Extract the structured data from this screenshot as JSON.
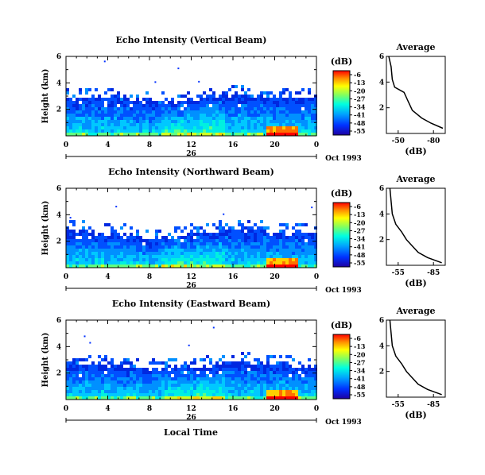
{
  "figure": {
    "xlabel": "Local Time",
    "panels": [
      {
        "title": "Echo Intensity (Vertical Beam)",
        "ylabel": "Height (km)",
        "yticks": [
          "6",
          "4",
          "2"
        ],
        "xticks": [
          "0",
          "4",
          "8",
          "12",
          "16",
          "20",
          "0"
        ],
        "day_label": "26",
        "month_label": "Oct 1993",
        "colorbar_unit": "(dB)",
        "colorbar_ticks": [
          "-6",
          "-13",
          "-20",
          "-27",
          "-34",
          "-41",
          "-48",
          "-55"
        ],
        "profile": {
          "title": "Average",
          "xlabel": "(dB)",
          "xticks": [
            "-50",
            "-80"
          ],
          "yticks": [
            "6",
            "4",
            "2"
          ]
        }
      },
      {
        "title": "Echo Intensity (Northward Beam)",
        "ylabel": "Height (km)",
        "yticks": [
          "6",
          "4",
          "2"
        ],
        "xticks": [
          "0",
          "4",
          "8",
          "12",
          "16",
          "20",
          "0"
        ],
        "day_label": "26",
        "month_label": "Oct 1993",
        "colorbar_unit": "(dB)",
        "colorbar_ticks": [
          "-6",
          "-13",
          "-20",
          "-27",
          "-34",
          "-41",
          "-48",
          "-55"
        ],
        "profile": {
          "title": "Average",
          "xlabel": "(dB)",
          "xticks": [
            "-55",
            "-85"
          ],
          "yticks": [
            "6",
            "4",
            "2"
          ]
        }
      },
      {
        "title": "Echo Intensity (Eastward Beam)",
        "ylabel": "Height (km)",
        "yticks": [
          "6",
          "4",
          "2"
        ],
        "xticks": [
          "0",
          "4",
          "8",
          "12",
          "16",
          "20",
          "0"
        ],
        "day_label": "26",
        "month_label": "Oct 1993",
        "colorbar_unit": "(dB)",
        "colorbar_ticks": [
          "-6",
          "-13",
          "-20",
          "-27",
          "-34",
          "-41",
          "-48",
          "-55"
        ],
        "profile": {
          "title": "Average",
          "xlabel": "(dB)",
          "xticks": [
            "-55",
            "-85"
          ],
          "yticks": [
            "6",
            "4",
            "2"
          ]
        }
      }
    ]
  },
  "chart_data": [
    {
      "type": "heatmap",
      "beam": "Vertical",
      "x_range_hours": [
        0,
        24
      ],
      "y_range_km": [
        0,
        6
      ],
      "z_range_db": [
        -55,
        -6
      ],
      "colorscale": [
        "#0000c8",
        "#0050ff",
        "#00b4ff",
        "#00ffd0",
        "#80ff60",
        "#ffff00",
        "#ffa000",
        "#ff0000"
      ],
      "top_height_km": [
        [
          0,
          3.0
        ],
        [
          4,
          3.1
        ],
        [
          8,
          2.6
        ],
        [
          12,
          2.8
        ],
        [
          14,
          3.3
        ],
        [
          16,
          3.2
        ],
        [
          20,
          3.0
        ],
        [
          24,
          3.0
        ]
      ],
      "average_profile": {
        "x_range_db": [
          -40,
          -90
        ],
        "points": [
          [
            -42,
            6
          ],
          [
            -44,
            5.2
          ],
          [
            -45,
            4.2
          ],
          [
            -47,
            3.6
          ],
          [
            -55,
            3.2
          ],
          [
            -58,
            2.6
          ],
          [
            -62,
            1.8
          ],
          [
            -70,
            1.2
          ],
          [
            -78,
            0.8
          ],
          [
            -88,
            0.4
          ]
        ]
      }
    },
    {
      "type": "heatmap",
      "beam": "Northward",
      "x_range_hours": [
        0,
        24
      ],
      "y_range_km": [
        0,
        6
      ],
      "z_range_db": [
        -55,
        -6
      ],
      "colorscale": [
        "#0000c8",
        "#0050ff",
        "#00b4ff",
        "#00ffd0",
        "#80ff60",
        "#ffff00",
        "#ffa000",
        "#ff0000"
      ],
      "top_height_km": [
        [
          0,
          2.9
        ],
        [
          4,
          2.8
        ],
        [
          8,
          2.3
        ],
        [
          12,
          2.6
        ],
        [
          16,
          3.0
        ],
        [
          20,
          2.8
        ],
        [
          24,
          2.7
        ]
      ],
      "average_profile": {
        "x_range_db": [
          -45,
          -95
        ],
        "points": [
          [
            -48,
            6
          ],
          [
            -49,
            5
          ],
          [
            -50,
            4
          ],
          [
            -53,
            3.2
          ],
          [
            -58,
            2.6
          ],
          [
            -62,
            2.0
          ],
          [
            -66,
            1.6
          ],
          [
            -72,
            1.0
          ],
          [
            -80,
            0.6
          ],
          [
            -92,
            0.2
          ]
        ]
      }
    },
    {
      "type": "heatmap",
      "beam": "Eastward",
      "x_range_hours": [
        0,
        24
      ],
      "y_range_km": [
        0,
        6
      ],
      "z_range_db": [
        -55,
        -6
      ],
      "colorscale": [
        "#0000c8",
        "#0050ff",
        "#00b4ff",
        "#00ffd0",
        "#80ff60",
        "#ffff00",
        "#ffa000",
        "#ff0000"
      ],
      "top_height_km": [
        [
          0,
          2.8
        ],
        [
          4,
          2.8
        ],
        [
          8,
          2.4
        ],
        [
          12,
          2.6
        ],
        [
          16,
          3.0
        ],
        [
          20,
          2.7
        ],
        [
          24,
          2.6
        ]
      ],
      "average_profile": {
        "x_range_db": [
          -45,
          -95
        ],
        "points": [
          [
            -48,
            6
          ],
          [
            -49,
            5
          ],
          [
            -50,
            4
          ],
          [
            -53,
            3.2
          ],
          [
            -58,
            2.6
          ],
          [
            -62,
            2.0
          ],
          [
            -66,
            1.6
          ],
          [
            -72,
            1.0
          ],
          [
            -80,
            0.6
          ],
          [
            -92,
            0.2
          ]
        ]
      }
    }
  ]
}
